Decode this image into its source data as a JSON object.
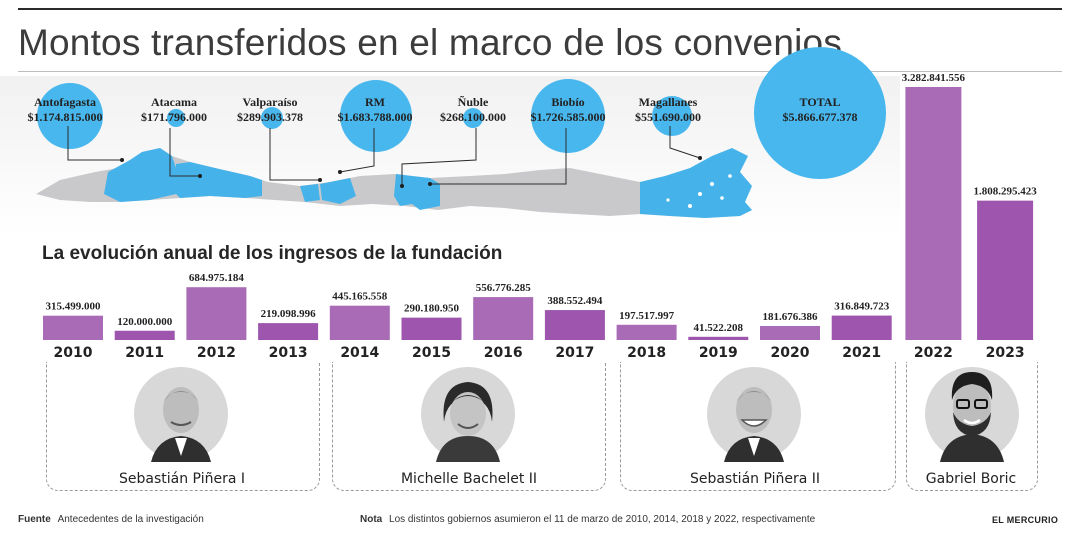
{
  "title": "Montos transferidos en el marco de los convenios",
  "subtitle": "La evolución anual de los ingresos de la fundación",
  "regions": [
    {
      "name": "Antofagasta",
      "amount": "$1.174.815.000"
    },
    {
      "name": "Atacama",
      "amount": "$171.796.000"
    },
    {
      "name": "Valparaíso",
      "amount": "$289.903.378"
    },
    {
      "name": "RM",
      "amount": "$1.683.788.000"
    },
    {
      "name": "Ñuble",
      "amount": "$268.100.000"
    },
    {
      "name": "Biobío",
      "amount": "$1.726.585.000"
    },
    {
      "name": "Magallanes",
      "amount": "$551.690.000"
    }
  ],
  "total": {
    "label": "TOTAL",
    "amount": "$5.866.677.378"
  },
  "governments": [
    {
      "name": "Sebastián Piñera I"
    },
    {
      "name": "Michelle Bachelet II"
    },
    {
      "name": "Sebastián Piñera II"
    },
    {
      "name": "Gabriel Boric"
    }
  ],
  "footer": {
    "source_label": "Fuente",
    "source_text": "Antecedentes de la investigación",
    "note_label": "Nota",
    "note_text": "Los distintos gobiernos asumieron el 11 de marzo de 2010, 2014, 2018 y 2022, respectivamente",
    "brand": "EL MERCURIO"
  },
  "colors": {
    "bar": "#a96bb6",
    "bar_dark": "#9d55ad",
    "map_blue": "#45b3ea",
    "map_gray": "#c9c9cc",
    "circle_blue": "#48b7ed",
    "portrait_bg": "#d8d8d8"
  },
  "chart_data": {
    "type": "bar",
    "title": "La evolución anual de los ingresos de la fundación",
    "categories": [
      "2010",
      "2011",
      "2012",
      "2013",
      "2014",
      "2015",
      "2016",
      "2017",
      "2018",
      "2019",
      "2020",
      "2021",
      "2022",
      "2023"
    ],
    "values": [
      315499000,
      120000000,
      684975184,
      219098996,
      445165558,
      290180950,
      556776285,
      388552494,
      197517997,
      41522208,
      181676386,
      316849723,
      3282841556,
      1808295423
    ],
    "labels": [
      "315.499.000",
      "120.000.000",
      "684.975.184",
      "219.098.996",
      "445.165.558",
      "290.180.950",
      "556.776.285",
      "388.552.494",
      "197.517.997",
      "41.522.208",
      "181.676.386",
      "316.849.723",
      "3.282.841.556",
      "1.808.295.423"
    ],
    "xlabel": "",
    "ylabel": ""
  }
}
